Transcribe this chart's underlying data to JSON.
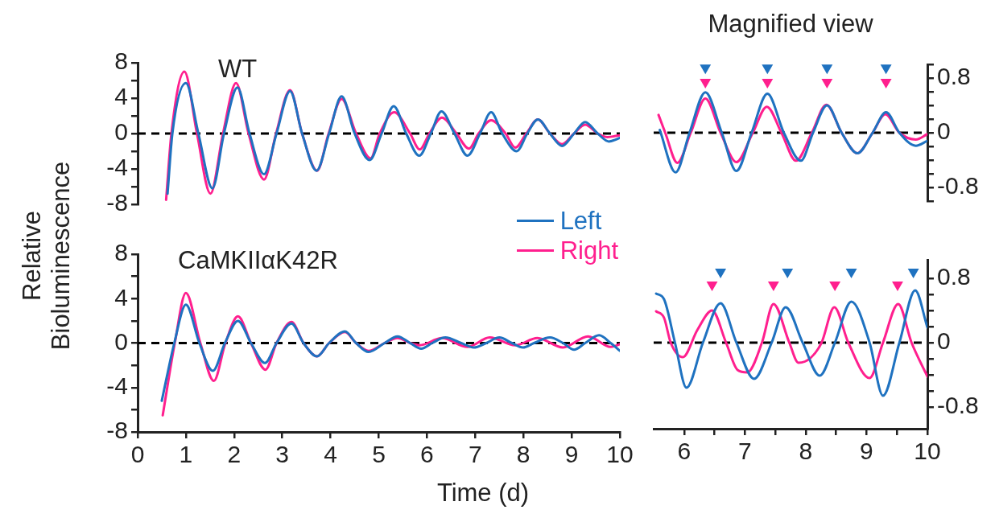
{
  "chart_data": [
    {
      "type": "line",
      "title": "WT",
      "ylabel": "Relative Bioluminescence",
      "xlim": [
        0,
        10
      ],
      "ylim": [
        -8,
        8
      ],
      "yticks": [
        -8,
        {
          "value": -6,
          "label": null
        },
        -4,
        {
          "value": -2,
          "label": null
        },
        0,
        {
          "value": 2,
          "label": null
        },
        4,
        {
          "value": 6,
          "label": null
        },
        8
      ],
      "tick_labels": "y",
      "grid": false,
      "legend": false,
      "ref_lines": [
        {
          "axis": "y",
          "value": 0,
          "color": "#000000",
          "line_style": "dashed"
        }
      ],
      "series": [
        {
          "color": "#1f72c0",
          "x": [
            0.62,
            0.72,
            1.0,
            1.26,
            1.55,
            1.79,
            2.07,
            2.32,
            2.62,
            2.88,
            3.16,
            3.41,
            3.71,
            3.97,
            4.23,
            4.5,
            4.81,
            5.06,
            5.31,
            5.57,
            5.84,
            6.08,
            6.3,
            6.57,
            6.84,
            7.1,
            7.33,
            7.56,
            7.86,
            8.08,
            8.3,
            8.55,
            8.8,
            9.05,
            9.28,
            9.54,
            9.77,
            10.0
          ],
          "values": [
            -6.8,
            0,
            5.7,
            0,
            -6.2,
            0,
            5.2,
            0,
            -4.6,
            0,
            4.8,
            0,
            -4.2,
            0,
            4.2,
            0,
            -3.0,
            0,
            3.1,
            0,
            -2.5,
            0,
            2.5,
            0,
            -2.5,
            0,
            2.4,
            0,
            -2.0,
            0,
            1.6,
            0,
            -1.4,
            0,
            1.3,
            0,
            -0.9,
            -0.5
          ]
        },
        {
          "color": "#ff1f8e",
          "x": [
            0.59,
            0.7,
            0.97,
            1.23,
            1.51,
            1.77,
            2.04,
            2.3,
            2.62,
            2.87,
            3.16,
            3.41,
            3.72,
            3.96,
            4.23,
            4.53,
            4.83,
            5.02,
            5.32,
            5.65,
            5.85,
            6.05,
            6.31,
            6.61,
            6.87,
            7.07,
            7.33,
            7.63,
            7.83,
            8.06,
            8.3,
            8.55,
            8.8,
            9.05,
            9.28,
            9.54,
            9.74,
            10.0
          ],
          "values": [
            -7.5,
            0,
            7.0,
            0,
            -6.8,
            0,
            5.7,
            0,
            -5.2,
            0,
            4.9,
            0,
            -4.2,
            0,
            3.9,
            0,
            -2.8,
            0,
            2.4,
            0,
            -1.8,
            0,
            1.8,
            0,
            -1.7,
            0,
            1.5,
            0,
            -1.6,
            0,
            1.6,
            0,
            -1.2,
            0,
            1.0,
            0,
            -0.4,
            -0.2
          ]
        }
      ]
    },
    {
      "type": "line",
      "title": "Magnified view",
      "xlim": [
        5.5,
        10
      ],
      "ylim": [
        -1,
        1
      ],
      "yticks": [
        {
          "value": -1,
          "label": null
        },
        -0.8,
        {
          "value": -0.6,
          "label": null
        },
        {
          "value": -0.4,
          "label": null
        },
        {
          "value": -0.2,
          "label": null
        },
        0,
        {
          "value": 0.2,
          "label": null
        },
        {
          "value": 0.4,
          "label": null
        },
        {
          "value": 0.6,
          "label": null
        },
        0.8,
        {
          "value": 1,
          "label": null
        }
      ],
      "tick_labels": "y",
      "grid": false,
      "legend": false,
      "ref_lines": [
        {
          "axis": "y",
          "value": 0,
          "color": "#000000",
          "line_style": "dashed"
        }
      ],
      "series": [
        {
          "color": "#1f72c0",
          "x": [
            5.6,
            5.86,
            6.09,
            6.35,
            6.62,
            6.86,
            7.11,
            7.37,
            7.64,
            7.92,
            8.12,
            8.35,
            8.59,
            8.85,
            9.1,
            9.32,
            9.54,
            9.81,
            10.0
          ],
          "values": [
            0.04,
            -0.58,
            0,
            0.59,
            0,
            -0.56,
            0,
            0.57,
            0,
            -0.41,
            0,
            0.4,
            0,
            -0.3,
            0,
            0.3,
            0,
            -0.19,
            -0.12
          ]
        },
        {
          "color": "#ff1f8e",
          "x": [
            5.58,
            5.69,
            5.89,
            6.11,
            6.35,
            6.6,
            6.86,
            7.13,
            7.36,
            7.6,
            7.84,
            8.1,
            8.34,
            8.59,
            8.85,
            9.1,
            9.31,
            9.54,
            9.81,
            10.0
          ],
          "values": [
            0.26,
            0,
            -0.44,
            0,
            0.5,
            0,
            -0.43,
            0,
            0.38,
            0,
            -0.41,
            0,
            0.41,
            0,
            -0.3,
            0,
            0.27,
            0,
            -0.1,
            -0.02
          ]
        },
        {
          "type": "scatter",
          "marker": "triangle",
          "color": "#1f72c0",
          "x": [
            6.35,
            7.37,
            8.35,
            9.32
          ],
          "values": [
            0.95,
            0.95,
            0.95,
            0.95
          ]
        },
        {
          "type": "scatter",
          "marker": "triangle",
          "color": "#ff1f8e",
          "x": [
            6.35,
            7.37,
            8.35,
            9.32
          ],
          "values": [
            0.74,
            0.74,
            0.74,
            0.74
          ]
        }
      ]
    },
    {
      "type": "line",
      "title": "CaMKIIαK42R",
      "xlabel": "Time (d)",
      "xlim": [
        0,
        10
      ],
      "xticks": [
        0,
        1,
        2,
        3,
        4,
        5,
        6,
        7,
        8,
        9,
        10
      ],
      "ylim": [
        -8,
        8
      ],
      "yticks": [
        -8,
        {
          "value": -6,
          "label": null
        },
        -4,
        {
          "value": -2,
          "label": null
        },
        0,
        {
          "value": 2,
          "label": null
        },
        4,
        {
          "value": 6,
          "label": null
        },
        8
      ],
      "grid": false,
      "legend": "top right",
      "ref_lines": [
        {
          "axis": "y",
          "value": 0,
          "color": "#000000",
          "line_style": "dashed"
        }
      ],
      "series": [
        {
          "name": "Left",
          "color": "#1f72c0",
          "x": [
            0.5,
            0.76,
            1.0,
            1.28,
            1.56,
            1.81,
            2.08,
            2.35,
            2.64,
            2.88,
            3.19,
            3.44,
            3.72,
            3.97,
            4.3,
            4.53,
            4.79,
            5.12,
            5.39,
            5.65,
            5.88,
            6.11,
            6.38,
            6.71,
            6.97,
            7.23,
            7.5,
            7.76,
            7.99,
            8.22,
            8.55,
            8.82,
            9.05,
            9.28,
            9.57,
            9.81,
            10.0
          ],
          "values": [
            -5.2,
            0,
            3.45,
            0,
            -2.5,
            0,
            2.0,
            0,
            -1.8,
            0,
            1.75,
            0,
            -1.2,
            0,
            1.05,
            0,
            -0.8,
            0,
            0.6,
            0,
            -0.5,
            0,
            0.5,
            0,
            -0.4,
            0,
            0.5,
            0,
            -0.4,
            0,
            0.5,
            0,
            -0.6,
            0,
            0.7,
            0,
            -0.7
          ]
        },
        {
          "name": "Right",
          "color": "#ff1f8e",
          "x": [
            0.52,
            0.77,
            1.0,
            1.3,
            1.58,
            1.82,
            2.08,
            2.35,
            2.65,
            2.88,
            3.19,
            3.44,
            3.72,
            3.97,
            4.3,
            4.53,
            4.79,
            5.12,
            5.39,
            5.65,
            5.85,
            6.31,
            6.84,
            7.3,
            7.83,
            8.29,
            8.82,
            9.34,
            9.81,
            10.0
          ],
          "values": [
            -6.5,
            0,
            4.5,
            0,
            -3.4,
            0,
            2.4,
            0,
            -2.4,
            0,
            1.9,
            0,
            -1.2,
            0,
            1.0,
            0,
            -0.7,
            0,
            0.45,
            0,
            -0.2,
            0.45,
            -0.35,
            0.5,
            -0.2,
            0.45,
            -0.4,
            0.6,
            -0.35,
            -0.1
          ]
        }
      ]
    },
    {
      "type": "line",
      "xlim": [
        5.5,
        10
      ],
      "xticks": [
        6,
        {
          "value": 6.5,
          "label": null
        },
        7,
        {
          "value": 7.5,
          "label": null
        },
        8,
        {
          "value": 8.5,
          "label": null
        },
        9,
        {
          "value": 9.5,
          "label": null
        },
        10
      ],
      "ylim": [
        -1.07,
        1.03
      ],
      "yticks": [
        -0.8,
        {
          "value": -0.6,
          "label": null
        },
        {
          "value": -0.4,
          "label": null
        },
        {
          "value": -0.2,
          "label": null
        },
        0,
        {
          "value": 0.2,
          "label": null
        },
        {
          "value": 0.4,
          "label": null
        },
        {
          "value": 0.6,
          "label": null
        },
        0.8
      ],
      "grid": false,
      "legend": false,
      "ref_lines": [
        {
          "axis": "y",
          "value": 0,
          "color": "#000000",
          "line_style": "dashed"
        }
      ],
      "series": [
        {
          "color": "#1f72c0",
          "x": [
            5.54,
            5.67,
            5.85,
            6.04,
            6.31,
            6.6,
            6.86,
            7.15,
            7.44,
            7.67,
            7.95,
            8.23,
            8.48,
            8.75,
            9.05,
            9.27,
            9.54,
            9.8,
            10.0
          ],
          "values": [
            0.61,
            0.54,
            0,
            -0.56,
            0,
            0.49,
            0,
            -0.45,
            0,
            0.44,
            0,
            -0.41,
            0,
            0.51,
            0,
            -0.66,
            0,
            0.65,
            0.19
          ]
        },
        {
          "color": "#ff1f8e",
          "x": [
            5.54,
            5.67,
            5.78,
            5.98,
            6.22,
            6.46,
            6.69,
            6.88,
            7.04,
            7.28,
            7.47,
            7.73,
            7.88,
            8.08,
            8.26,
            8.47,
            8.7,
            9.05,
            9.27,
            9.52,
            9.74,
            10.0
          ],
          "values": [
            0.39,
            0.31,
            0,
            -0.18,
            0.16,
            0.4,
            0,
            -0.34,
            -0.37,
            0,
            0.48,
            0,
            -0.25,
            -0.19,
            0,
            0.44,
            0,
            -0.44,
            0,
            0.48,
            0,
            -0.42
          ]
        },
        {
          "type": "scatter",
          "marker": "triangle",
          "color": "#1f72c0",
          "x": [
            6.6,
            7.7,
            8.75,
            9.77
          ],
          "values": [
            0.88,
            0.88,
            0.88,
            0.88
          ]
        },
        {
          "type": "scatter",
          "marker": "triangle",
          "color": "#ff1f8e",
          "x": [
            6.46,
            7.47,
            8.48,
            9.51
          ],
          "values": [
            0.72,
            0.72,
            0.72,
            0.72
          ]
        }
      ]
    }
  ]
}
